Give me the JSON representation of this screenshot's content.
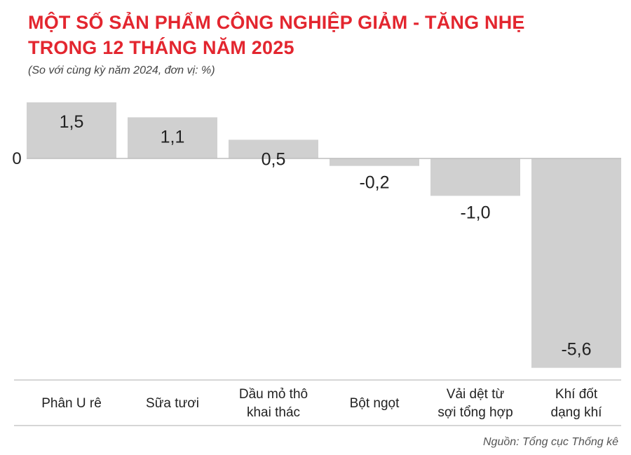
{
  "header": {
    "title_line1": "MỘT SỐ SẢN PHẨM CÔNG NGHIỆP GIẢM - TĂNG NHẸ",
    "title_line2": "TRONG 12 THÁNG NĂM 2025",
    "subtitle": "(So với cùng kỳ năm 2024, đơn vị: %)"
  },
  "source": "Nguồn: Tổng cục Thống kê",
  "colors": {
    "title": "#e3262f",
    "bar": "#d0d0d0",
    "axis": "#bdbdbd",
    "text": "#222222"
  },
  "chart_data": {
    "type": "bar",
    "categories": [
      [
        "Phân U rê"
      ],
      [
        "Sữa tươi"
      ],
      [
        "Dầu mỏ thô",
        "khai thác"
      ],
      [
        "Bột ngọt"
      ],
      [
        "Vải dệt từ",
        "sợi tổng hợp"
      ],
      [
        "Khí đốt",
        "dạng khí"
      ]
    ],
    "values": [
      1.5,
      1.1,
      0.5,
      -0.2,
      -1.0,
      -5.6
    ],
    "value_labels": [
      "1,5",
      "1,1",
      "0,5",
      "-0,2",
      "-1,0",
      "-5,6"
    ],
    "zero_label": "0",
    "ylim": [
      -5.6,
      1.5
    ],
    "grid": false,
    "legend": "none"
  }
}
